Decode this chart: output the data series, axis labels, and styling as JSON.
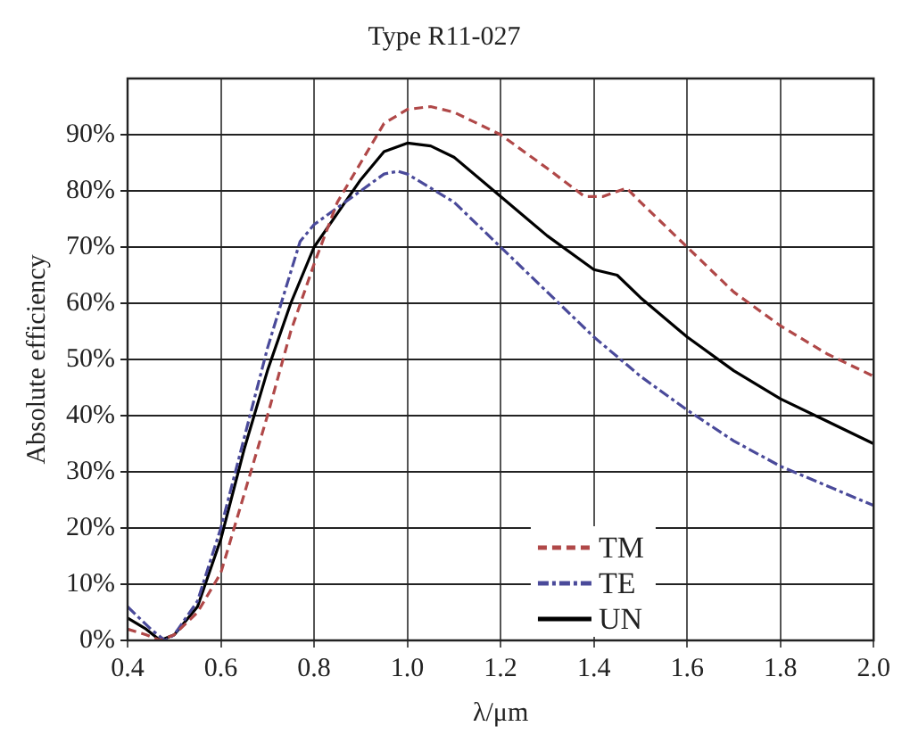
{
  "chart_data": {
    "type": "line",
    "title": "Type R11-027",
    "xlabel": "λ/μm",
    "ylabel": "Absolute efficiency",
    "xlim": [
      0.4,
      2.0
    ],
    "xticks": [
      {
        "value": 0.4,
        "label": "0.4"
      },
      {
        "value": 0.6,
        "label": "0.6"
      },
      {
        "value": 0.8,
        "label": "0.8"
      },
      {
        "value": 1.0,
        "label": "1.0"
      },
      {
        "value": 1.2,
        "label": "1.2"
      },
      {
        "value": 1.4,
        "label": "1.4"
      },
      {
        "value": 1.6,
        "label": "1.6"
      },
      {
        "value": 1.8,
        "label": "1.8"
      },
      {
        "value": 2.0,
        "label": "2.0"
      }
    ],
    "ylim": [
      0,
      100
    ],
    "yticks": [
      {
        "value": 0,
        "label": "0%"
      },
      {
        "value": 10,
        "label": "10%"
      },
      {
        "value": 20,
        "label": "20%"
      },
      {
        "value": 30,
        "label": "30%"
      },
      {
        "value": 40,
        "label": "40%"
      },
      {
        "value": 50,
        "label": "50%"
      },
      {
        "value": 60,
        "label": "60%"
      },
      {
        "value": 70,
        "label": "70%"
      },
      {
        "value": 80,
        "label": "80%"
      },
      {
        "value": 90,
        "label": "90%"
      }
    ],
    "grid": true,
    "legend": "bottom right",
    "marker": "none",
    "series": [
      {
        "name": "TM",
        "color": "#b04848",
        "line_style": "dashed",
        "x": [
          0.4,
          0.44,
          0.47,
          0.5,
          0.55,
          0.6,
          0.65,
          0.7,
          0.75,
          0.8,
          0.85,
          0.9,
          0.95,
          1.0,
          1.05,
          1.1,
          1.2,
          1.3,
          1.38,
          1.42,
          1.47,
          1.5,
          1.6,
          1.7,
          1.8,
          1.9,
          2.0
        ],
        "values": [
          2,
          1,
          0,
          1,
          5,
          12,
          26,
          40,
          55,
          67,
          78,
          85,
          92,
          94.5,
          95,
          94,
          90,
          84,
          79,
          79,
          80.5,
          78,
          70,
          62,
          56,
          51,
          47
        ]
      },
      {
        "name": "TE",
        "color": "#4a4a9a",
        "line_style": "dashdot",
        "x": [
          0.4,
          0.45,
          0.48,
          0.5,
          0.55,
          0.6,
          0.65,
          0.7,
          0.77,
          0.8,
          0.9,
          0.95,
          0.98,
          1.0,
          1.1,
          1.2,
          1.3,
          1.4,
          1.5,
          1.6,
          1.7,
          1.8,
          1.9,
          2.0
        ],
        "values": [
          6,
          2,
          0,
          1,
          7,
          20,
          36,
          52,
          71,
          74,
          80,
          83,
          83.5,
          83,
          78,
          70,
          62,
          54,
          47,
          41,
          35.5,
          31,
          27.5,
          24
        ]
      },
      {
        "name": "UN",
        "color": "#000000",
        "line_style": "solid",
        "x": [
          0.4,
          0.44,
          0.47,
          0.5,
          0.55,
          0.6,
          0.65,
          0.7,
          0.75,
          0.8,
          0.9,
          0.95,
          1.0,
          1.05,
          1.1,
          1.2,
          1.3,
          1.4,
          1.45,
          1.5,
          1.6,
          1.7,
          1.8,
          1.9,
          2.0
        ],
        "values": [
          4,
          2,
          0,
          1,
          6,
          18,
          34,
          48,
          60,
          70,
          82,
          87,
          88.5,
          88,
          86,
          79,
          72,
          66,
          65,
          61,
          54,
          48,
          43,
          39,
          35
        ]
      }
    ]
  }
}
